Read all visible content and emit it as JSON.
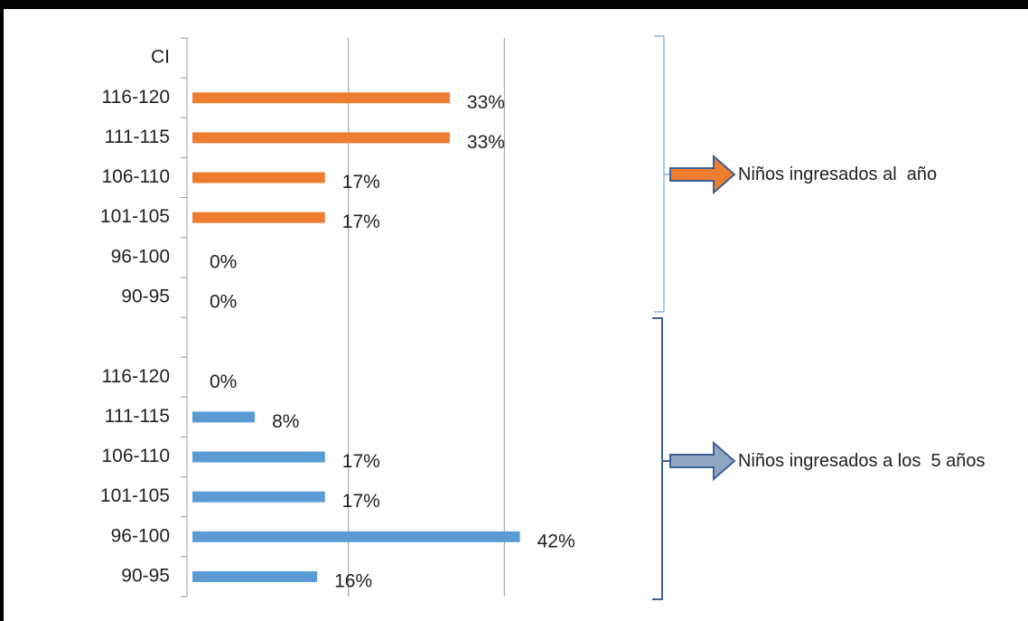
{
  "chart_data": {
    "type": "bar",
    "orientation": "horizontal",
    "categories": [
      "CI",
      "116-120",
      "111-115",
      "106-110",
      "101-105",
      "96-100",
      "90-95",
      null,
      "116-120",
      "111-115",
      "106-110",
      "101-105",
      "96-100",
      "90-95"
    ],
    "series": [
      {
        "name": "Niños ingresados al  año",
        "color": "#ed7d31",
        "values": [
          null,
          33,
          33,
          17,
          17,
          0,
          0,
          null,
          null,
          null,
          null,
          null,
          null,
          null
        ],
        "value_labels": [
          null,
          "33%",
          "33%",
          "17%",
          "17%",
          "0%",
          "0%",
          null,
          null,
          null,
          null,
          null,
          null,
          null
        ]
      },
      {
        "name": "Niños ingresados a los  5 años",
        "color": "#5b9bd5",
        "values": [
          null,
          null,
          null,
          null,
          null,
          null,
          null,
          null,
          0,
          8,
          17,
          17,
          42,
          16
        ],
        "value_labels": [
          null,
          null,
          null,
          null,
          null,
          null,
          null,
          null,
          "0%",
          "8%",
          "17%",
          "17%",
          "42%",
          "16%"
        ]
      }
    ],
    "xlim": [
      0,
      60
    ],
    "xticks": [
      0,
      20,
      40
    ],
    "grid": true
  }
}
